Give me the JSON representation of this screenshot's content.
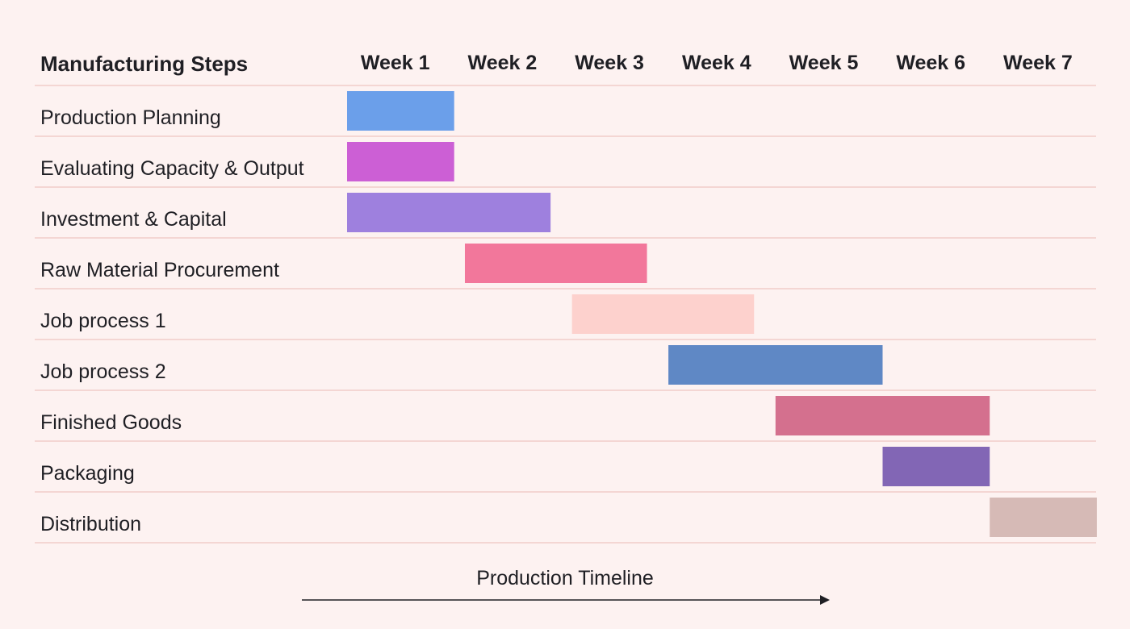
{
  "chart_data": {
    "type": "gantt",
    "row_header": "Manufacturing Steps",
    "weeks": [
      "Week 1",
      "Week 2",
      "Week 3",
      "Week 4",
      "Week 5",
      "Week 6",
      "Week 7"
    ],
    "tasks": [
      {
        "name": "Production Planning",
        "start": 0.0,
        "end": 1.0,
        "color": "#6b9fea"
      },
      {
        "name": "Evaluating Capacity & Output",
        "start": 0.0,
        "end": 1.0,
        "color": "#cc5fd5"
      },
      {
        "name": "Investment & Capital",
        "start": 0.0,
        "end": 1.9,
        "color": "#9e80de"
      },
      {
        "name": "Raw Material Procurement",
        "start": 1.1,
        "end": 2.8,
        "color": "#f2779b"
      },
      {
        "name": "Job process 1",
        "start": 2.1,
        "end": 3.8,
        "color": "#fdd1cd"
      },
      {
        "name": "Job process 2",
        "start": 3.0,
        "end": 5.0,
        "color": "#5f88c5"
      },
      {
        "name": "Finished Goods",
        "start": 4.0,
        "end": 6.0,
        "color": "#d4708e"
      },
      {
        "name": "Packaging",
        "start": 5.0,
        "end": 6.0,
        "color": "#8266b5"
      },
      {
        "name": "Distribution",
        "start": 6.0,
        "end": 7.0,
        "color": "#d6bab6"
      }
    ],
    "xlabel": "Production Timeline",
    "grid": "horizontal",
    "gridline_color": "#f2cdc9"
  }
}
